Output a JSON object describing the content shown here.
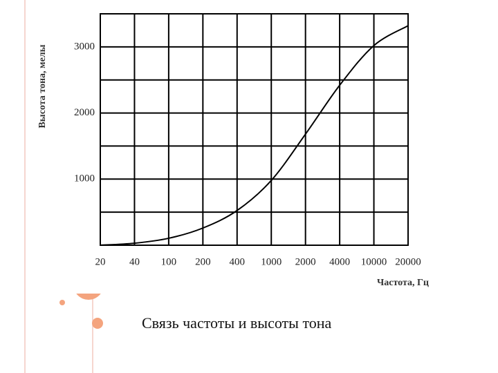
{
  "chart_data": {
    "type": "line",
    "title": null,
    "y_label": "Высота тона, мелы",
    "x_label": "Частота, Гц",
    "x": [
      20,
      40,
      100,
      200,
      400,
      1000,
      2000,
      4000,
      10000,
      20000
    ],
    "series": [
      {
        "name": null,
        "color": "#000000",
        "values": [
          0,
          30,
          105,
          260,
          525,
          980,
          1680,
          2420,
          3020,
          3320
        ]
      }
    ],
    "xlim": [
      20,
      20000
    ],
    "xticks": [
      20,
      40,
      100,
      200,
      400,
      1000,
      2000,
      4000,
      10000,
      20000
    ],
    "ylim": [
      0,
      3500
    ],
    "yticks": [
      1000,
      2000,
      3000
    ],
    "yminor": [
      500,
      1500,
      2500,
      3500
    ],
    "grid": true
  },
  "caption": "Связь частоты и высоты тона"
}
